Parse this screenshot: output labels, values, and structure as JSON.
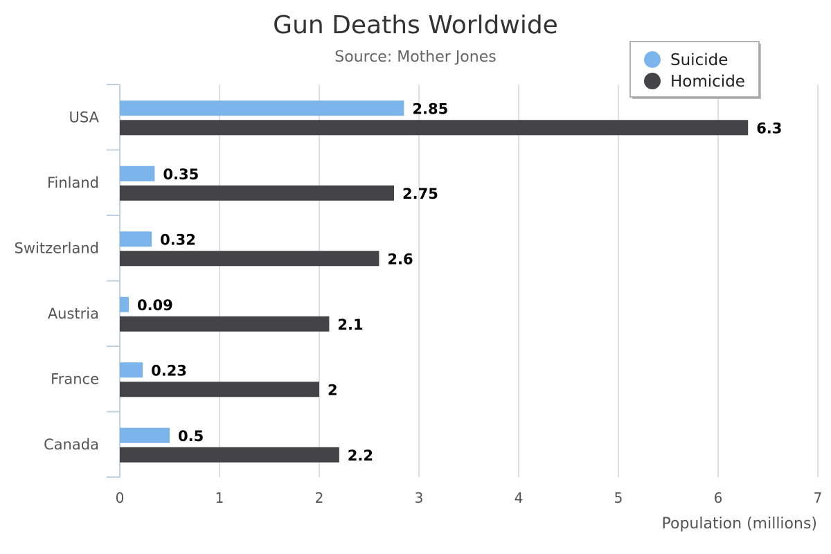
{
  "chart_data": {
    "type": "bar",
    "orientation": "horizontal",
    "title": "Gun Deaths Worldwide",
    "subtitle": "Source: Mother Jones",
    "xlabel": "Population (millions)",
    "ylabel": "",
    "xlim": [
      0,
      7
    ],
    "xticks": [
      "0",
      "1",
      "2",
      "3",
      "4",
      "5",
      "6",
      "7"
    ],
    "grid": true,
    "legend_position": "top-right",
    "categories": [
      "USA",
      "Finland",
      "Switzerland",
      "Austria",
      "France",
      "Canada"
    ],
    "series": [
      {
        "name": "Suicide",
        "color": "#7cb5ec",
        "values": [
          2.85,
          0.35,
          0.32,
          0.09,
          0.23,
          0.5
        ],
        "labels": [
          "2.85",
          "0.35",
          "0.32",
          "0.09",
          "0.23",
          "0.5"
        ]
      },
      {
        "name": "Homicide",
        "color": "#434348",
        "values": [
          6.3,
          2.75,
          2.6,
          2.1,
          2,
          2.2
        ],
        "labels": [
          "6.3",
          "2.75",
          "2.6",
          "2.1",
          "2",
          "2.2"
        ]
      }
    ]
  }
}
